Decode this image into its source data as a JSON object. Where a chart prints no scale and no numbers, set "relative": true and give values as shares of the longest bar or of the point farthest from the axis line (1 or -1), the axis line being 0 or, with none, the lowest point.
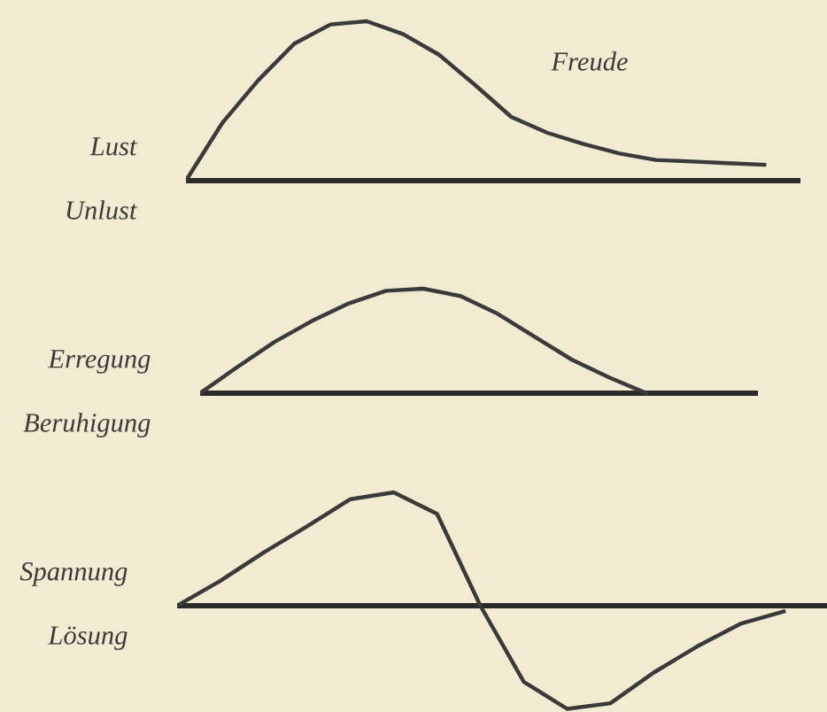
{
  "chart_data": [
    {
      "type": "line",
      "relative": true,
      "categories": [
        null,
        null,
        null,
        null,
        null,
        null,
        null,
        null,
        null,
        null,
        null,
        null,
        null,
        null,
        null,
        null,
        null,
        null
      ],
      "series": [
        {
          "name": "Freude",
          "color": "#3a3a3a",
          "values": [
            0,
            0.36,
            0.63,
            0.86,
            0.98,
            1,
            0.92,
            0.79,
            0.6,
            0.4,
            0.3,
            0.23,
            0.17,
            0.13,
            0.12,
            0.11,
            0.1,
            null
          ]
        }
      ],
      "annotations": [
        "Lust",
        "Unlust"
      ]
    },
    {
      "type": "line",
      "relative": true,
      "categories": [
        null,
        null,
        null,
        null,
        null,
        null,
        null,
        null,
        null,
        null,
        null,
        null,
        null,
        null,
        null,
        null
      ],
      "series": [
        {
          "color": "#3a3a3a",
          "values": [
            0,
            0.25,
            0.49,
            0.69,
            0.86,
            0.98,
            1,
            0.93,
            0.76,
            0.54,
            0.32,
            0.15,
            0,
            null,
            null,
            null
          ]
        }
      ],
      "annotations": [
        "Erregung",
        "Beruhigung"
      ]
    },
    {
      "type": "line",
      "relative": true,
      "categories": [
        null,
        null,
        null,
        null,
        null,
        null,
        null,
        null,
        null,
        null,
        null,
        null,
        null,
        null,
        null,
        null
      ],
      "series": [
        {
          "color": "#3a3a3a",
          "values": [
            0,
            0.22,
            0.47,
            0.7,
            0.94,
            1,
            0.81,
            0,
            -0.67,
            -0.91,
            -0.86,
            -0.59,
            -0.36,
            -0.16,
            -0.05,
            null
          ]
        }
      ],
      "annotations": [
        "Spannung",
        "Lösung"
      ]
    }
  ]
}
